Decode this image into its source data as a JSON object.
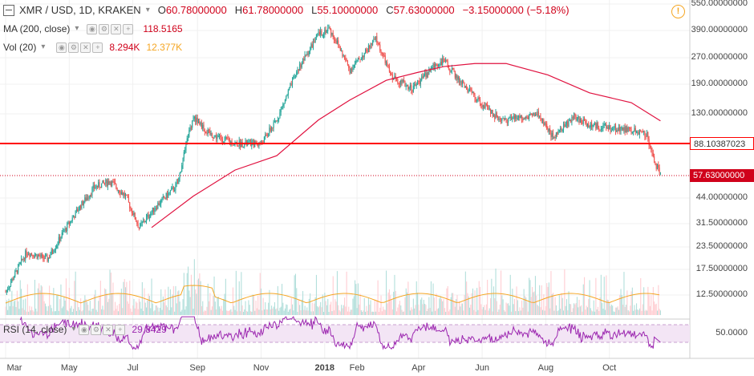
{
  "legend": {
    "symbol": "XMR / USD, 1D, KRAKEN",
    "open_label": "O",
    "open": "60.78000000",
    "high_label": "H",
    "high": "61.78000000",
    "low_label": "L",
    "low": "55.10000000",
    "close_label": "C",
    "close": "57.63000000",
    "change": "−3.15000000 (−5.18%)",
    "ma_label": "MA (200, close)",
    "ma_value": "118.5165",
    "vol_label": "Vol (20)",
    "vol_value1": "8.294K",
    "vol_value2": "12.377K",
    "rsi_label": "RSI (14, close)",
    "rsi_value": "29.8429"
  },
  "price_axis": {
    "ticks": [
      "550.00000000",
      "390.00000000",
      "270.00000000",
      "190.00000000",
      "130.00000000",
      "88.10387023",
      "57.63000000",
      "44.00000000",
      "31.50000000",
      "23.50000000",
      "17.50000000",
      "12.50000000"
    ],
    "levels": [
      550,
      390,
      270,
      190,
      130,
      88.10387023,
      57.63,
      44,
      31.5,
      23.5,
      17.5,
      12.5
    ],
    "horizontal_line_label": "88.10387023",
    "horizontal_line_value": 88.10387023,
    "last_price_label": "57.63000000",
    "last_price_value": 57.63
  },
  "rsi_axis": {
    "tick": "50.0000",
    "value": 50,
    "band_upper": 70,
    "band_lower": 30
  },
  "time_axis": {
    "labels": [
      "Mar",
      "May",
      "Jul",
      "Sep",
      "Nov",
      "2018",
      "Feb",
      "Apr",
      "Jun",
      "Aug",
      "Oct"
    ],
    "day_index": [
      0,
      61,
      122,
      184,
      245,
      306,
      337,
      396,
      457,
      518,
      579
    ]
  },
  "colors": {
    "up": "#26a69a",
    "down": "#ef5350",
    "ma": "#e0113f",
    "hline": "#ff0000",
    "lastprice": "#d0021b",
    "vol_up": "#b2dfdb",
    "vol_down": "#ffcdd2",
    "vol_ma": "#f5a623",
    "rsi": "#9c27b0",
    "rsi_band": "#f3e5f5"
  },
  "chart_data": {
    "type": "candlestick",
    "title": "XMR / USD, 1D, KRAKEN",
    "x_start": "2017-03-01",
    "x_end": "2018-11-24",
    "price_scale": "log",
    "ylim": [
      10,
      600
    ],
    "price_path": [
      {
        "day": 0,
        "price": 13
      },
      {
        "day": 20,
        "price": 22
      },
      {
        "day": 40,
        "price": 20
      },
      {
        "day": 55,
        "price": 28
      },
      {
        "day": 72,
        "price": 40
      },
      {
        "day": 85,
        "price": 50
      },
      {
        "day": 100,
        "price": 54
      },
      {
        "day": 115,
        "price": 45
      },
      {
        "day": 128,
        "price": 30
      },
      {
        "day": 145,
        "price": 40
      },
      {
        "day": 165,
        "price": 52
      },
      {
        "day": 175,
        "price": 98
      },
      {
        "day": 180,
        "price": 125
      },
      {
        "day": 195,
        "price": 100
      },
      {
        "day": 220,
        "price": 88
      },
      {
        "day": 245,
        "price": 88
      },
      {
        "day": 260,
        "price": 120
      },
      {
        "day": 280,
        "price": 230
      },
      {
        "day": 300,
        "price": 370
      },
      {
        "day": 310,
        "price": 400
      },
      {
        "day": 318,
        "price": 330
      },
      {
        "day": 330,
        "price": 230
      },
      {
        "day": 345,
        "price": 290
      },
      {
        "day": 355,
        "price": 350
      },
      {
        "day": 370,
        "price": 210
      },
      {
        "day": 390,
        "price": 180
      },
      {
        "day": 410,
        "price": 240
      },
      {
        "day": 420,
        "price": 260
      },
      {
        "day": 435,
        "price": 200
      },
      {
        "day": 455,
        "price": 150
      },
      {
        "day": 475,
        "price": 120
      },
      {
        "day": 495,
        "price": 125
      },
      {
        "day": 510,
        "price": 130
      },
      {
        "day": 525,
        "price": 95
      },
      {
        "day": 545,
        "price": 125
      },
      {
        "day": 560,
        "price": 112
      },
      {
        "day": 580,
        "price": 108
      },
      {
        "day": 600,
        "price": 105
      },
      {
        "day": 615,
        "price": 100
      },
      {
        "day": 620,
        "price": 75
      },
      {
        "day": 628,
        "price": 58
      }
    ],
    "ma200_path": [
      {
        "day": 140,
        "price": 30
      },
      {
        "day": 180,
        "price": 45
      },
      {
        "day": 220,
        "price": 62
      },
      {
        "day": 260,
        "price": 75
      },
      {
        "day": 300,
        "price": 120
      },
      {
        "day": 330,
        "price": 155
      },
      {
        "day": 365,
        "price": 200
      },
      {
        "day": 395,
        "price": 222
      },
      {
        "day": 420,
        "price": 240
      },
      {
        "day": 450,
        "price": 250
      },
      {
        "day": 480,
        "price": 250
      },
      {
        "day": 520,
        "price": 215
      },
      {
        "day": 560,
        "price": 170
      },
      {
        "day": 600,
        "price": 150
      },
      {
        "day": 628,
        "price": 118.5165
      }
    ],
    "horizontal_line": 88.10387023,
    "last_close": 57.63,
    "volume": {
      "ma_period": 20,
      "last": 8294,
      "ma_last": 12377
    },
    "rsi": {
      "period": 14,
      "last": 29.8429,
      "bands": [
        30,
        70
      ]
    }
  }
}
